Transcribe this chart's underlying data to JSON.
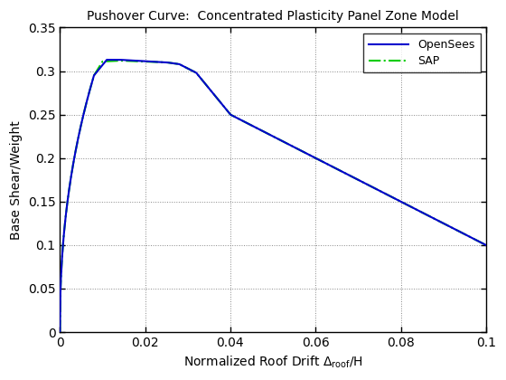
{
  "title": "Pushover Curve:  Concentrated Plasticity Panel Zone Model",
  "xlabel_prefix": "Normalized Roof Drift Δ",
  "xlabel_sub": "roof",
  "xlabel_suffix": "/H",
  "ylabel": "Base Shear/Weight",
  "xlim": [
    0,
    0.1
  ],
  "ylim": [
    0,
    0.35
  ],
  "xticks": [
    0,
    0.02,
    0.04,
    0.06,
    0.08,
    0.1
  ],
  "yticks": [
    0,
    0.05,
    0.1,
    0.15,
    0.2,
    0.25,
    0.3,
    0.35
  ],
  "opensees_color": "#0000CC",
  "sap_color": "#00CC00",
  "background_color": "#ffffff",
  "grid_color": "#888888",
  "legend_labels": [
    "OpenSees",
    "SAP"
  ]
}
